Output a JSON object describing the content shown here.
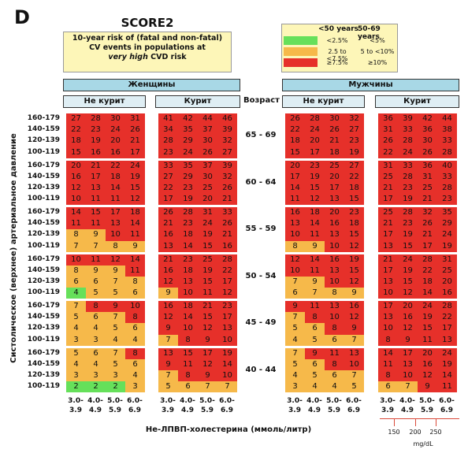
{
  "panel_letter": "D",
  "chart_data": {
    "type": "heatmap",
    "title": "SCORE2",
    "subtitle_lines": [
      "10-year risk of (fatal and non-fatal)",
      "CV events in populations at"
    ],
    "subtitle_emph": "very high",
    "subtitle_tail": "CVD risk",
    "legend": {
      "col1": "<50 years",
      "col2": "50-69 years",
      "rows": [
        {
          "color": "#66e05a",
          "a": "<2.5%",
          "b": "<5%"
        },
        {
          "color": "#f6b94a",
          "a": "2.5 to <7.5%",
          "b": "5 to <10%"
        },
        {
          "color": "#e6302a",
          "a": "≥7.5%",
          "b": "≥10%"
        }
      ]
    },
    "sex_labels": [
      "Женщины",
      "Мужчины"
    ],
    "smoking_labels": [
      "Не курит",
      "Курит"
    ],
    "age_header": "Возраст",
    "age_groups": [
      "65 - 69",
      "60 - 64",
      "55 - 59",
      "50 - 54",
      "45 - 49",
      "40 - 44"
    ],
    "sbp_labels": [
      "160-179",
      "140-159",
      "120-139",
      "100-119"
    ],
    "ylabel": "Систолическое (верхнее) артериальное давление",
    "xlabel": "Не-ЛПВП-холестерина (ммоль/литр)",
    "x_ticks_top": [
      "3.0-",
      "4.0-",
      "5.0-",
      "6.0-"
    ],
    "x_ticks_bottom": [
      "3.9",
      "4.9",
      "5.9",
      "6.9"
    ],
    "mgdl_ticks": [
      "150",
      "200",
      "250"
    ],
    "mgdl_unit": "mg/dL",
    "colors": {
      "green": "#66e05a",
      "orange": "#f6b94a",
      "red": "#e6302a"
    },
    "values": {
      "female_nonsmoker": [
        [
          [
            27,
            28,
            30,
            31
          ],
          [
            22,
            23,
            24,
            26
          ],
          [
            18,
            19,
            20,
            21
          ],
          [
            15,
            16,
            16,
            17
          ]
        ],
        [
          [
            20,
            21,
            22,
            24
          ],
          [
            16,
            17,
            18,
            19
          ],
          [
            12,
            13,
            14,
            15
          ],
          [
            10,
            11,
            11,
            12
          ]
        ],
        [
          [
            14,
            15,
            17,
            18
          ],
          [
            11,
            11,
            13,
            14
          ],
          [
            8,
            9,
            10,
            11
          ],
          [
            7,
            7,
            8,
            9
          ]
        ],
        [
          [
            10,
            11,
            12,
            14
          ],
          [
            8,
            9,
            9,
            11
          ],
          [
            6,
            6,
            7,
            8
          ],
          [
            4,
            5,
            5,
            6
          ]
        ],
        [
          [
            7,
            8,
            9,
            10
          ],
          [
            5,
            6,
            7,
            8
          ],
          [
            4,
            4,
            5,
            6
          ],
          [
            3,
            3,
            4,
            4
          ]
        ],
        [
          [
            5,
            6,
            7,
            8
          ],
          [
            4,
            4,
            5,
            6
          ],
          [
            3,
            3,
            3,
            4
          ],
          [
            2,
            2,
            2,
            3
          ]
        ]
      ],
      "female_smoker": [
        [
          [
            41,
            42,
            44,
            46
          ],
          [
            34,
            35,
            37,
            39
          ],
          [
            28,
            29,
            30,
            32
          ],
          [
            23,
            24,
            26,
            27
          ]
        ],
        [
          [
            33,
            35,
            37,
            39
          ],
          [
            27,
            29,
            30,
            32
          ],
          [
            22,
            23,
            25,
            26
          ],
          [
            17,
            19,
            20,
            21
          ]
        ],
        [
          [
            26,
            28,
            31,
            33
          ],
          [
            21,
            23,
            24,
            26
          ],
          [
            16,
            18,
            19,
            21
          ],
          [
            13,
            14,
            15,
            16
          ]
        ],
        [
          [
            21,
            23,
            25,
            28
          ],
          [
            16,
            18,
            19,
            22
          ],
          [
            12,
            13,
            15,
            17
          ],
          [
            9,
            10,
            11,
            12
          ]
        ],
        [
          [
            16,
            18,
            21,
            23
          ],
          [
            12,
            14,
            15,
            17
          ],
          [
            9,
            10,
            12,
            13
          ],
          [
            7,
            8,
            9,
            10
          ]
        ],
        [
          [
            13,
            15,
            17,
            19
          ],
          [
            9,
            11,
            12,
            14
          ],
          [
            7,
            8,
            9,
            10
          ],
          [
            5,
            6,
            7,
            7
          ]
        ]
      ],
      "male_nonsmoker": [
        [
          [
            26,
            28,
            30,
            32
          ],
          [
            22,
            24,
            26,
            27
          ],
          [
            18,
            20,
            21,
            23
          ],
          [
            15,
            17,
            18,
            19
          ]
        ],
        [
          [
            20,
            23,
            25,
            27
          ],
          [
            17,
            19,
            20,
            22
          ],
          [
            14,
            15,
            17,
            18
          ],
          [
            11,
            12,
            13,
            15
          ]
        ],
        [
          [
            16,
            18,
            20,
            23
          ],
          [
            13,
            14,
            16,
            18
          ],
          [
            10,
            11,
            13,
            15
          ],
          [
            8,
            9,
            10,
            12
          ]
        ],
        [
          [
            12,
            14,
            16,
            19
          ],
          [
            10,
            11,
            13,
            15
          ],
          [
            7,
            9,
            10,
            12
          ],
          [
            6,
            7,
            8,
            9
          ]
        ],
        [
          [
            9,
            11,
            13,
            16
          ],
          [
            7,
            8,
            10,
            12
          ],
          [
            5,
            6,
            8,
            9
          ],
          [
            4,
            5,
            6,
            7
          ]
        ],
        [
          [
            7,
            9,
            11,
            13
          ],
          [
            5,
            6,
            8,
            10
          ],
          [
            4,
            5,
            6,
            7
          ],
          [
            3,
            4,
            4,
            5
          ]
        ]
      ],
      "male_smoker": [
        [
          [
            36,
            39,
            42,
            44
          ],
          [
            31,
            33,
            36,
            38
          ],
          [
            26,
            28,
            30,
            33
          ],
          [
            22,
            24,
            26,
            28
          ]
        ],
        [
          [
            31,
            33,
            36,
            40
          ],
          [
            25,
            28,
            31,
            33
          ],
          [
            21,
            23,
            25,
            28
          ],
          [
            17,
            19,
            21,
            23
          ]
        ],
        [
          [
            25,
            28,
            32,
            35
          ],
          [
            21,
            23,
            26,
            29
          ],
          [
            17,
            19,
            21,
            24
          ],
          [
            13,
            15,
            17,
            19
          ]
        ],
        [
          [
            21,
            24,
            28,
            31
          ],
          [
            17,
            19,
            22,
            25
          ],
          [
            13,
            15,
            18,
            20
          ],
          [
            10,
            12,
            14,
            16
          ]
        ],
        [
          [
            17,
            20,
            24,
            28
          ],
          [
            13,
            16,
            19,
            22
          ],
          [
            10,
            12,
            15,
            17
          ],
          [
            8,
            9,
            11,
            13
          ]
        ],
        [
          [
            14,
            17,
            20,
            24
          ],
          [
            11,
            13,
            16,
            19
          ],
          [
            8,
            10,
            12,
            14
          ],
          [
            6,
            7,
            9,
            11
          ]
        ]
      ]
    }
  }
}
